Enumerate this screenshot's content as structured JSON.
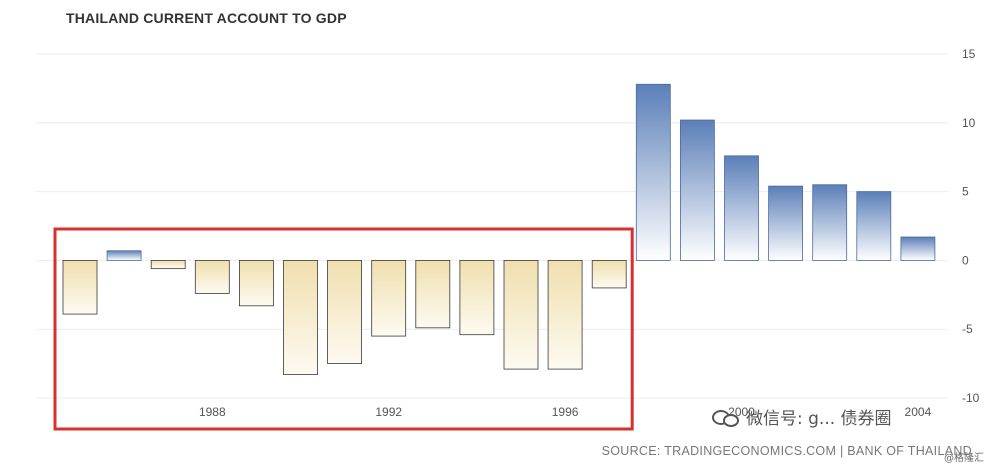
{
  "chart_data": {
    "type": "bar",
    "title": "THAILAND CURRENT ACCOUNT TO GDP",
    "x": [
      1985,
      1986,
      1987,
      1988,
      1989,
      1990,
      1991,
      1992,
      1993,
      1994,
      1995,
      1996,
      1997,
      1998,
      1999,
      2000,
      2001,
      2002,
      2003,
      2004
    ],
    "values": [
      -3.9,
      0.7,
      -0.6,
      -2.4,
      -3.3,
      -8.3,
      -7.5,
      -5.5,
      -4.9,
      -5.4,
      -7.9,
      -7.9,
      -2.0,
      12.8,
      10.2,
      7.6,
      5.4,
      5.5,
      5.0,
      1.7
    ],
    "x_tick_labels": [
      "1988",
      "1992",
      "1996",
      "2000",
      "2004"
    ],
    "x_ticks": [
      1988,
      1992,
      1996,
      2000,
      2004
    ],
    "y_tick_labels": [
      "15",
      "10",
      "5",
      "0",
      "-5",
      "-10"
    ],
    "y_ticks": [
      15,
      10,
      5,
      0,
      -5,
      -10
    ],
    "ylim": [
      -10,
      15
    ],
    "grid": true,
    "highlight_box": {
      "from": 1985,
      "to": 1997,
      "color": "#d9302f"
    },
    "colors": {
      "positive_top": "#5b7fb8",
      "positive_bottom": "#ffffff",
      "negative_top": "#f0dfae",
      "negative_bottom": "#fdfaf1",
      "positive_stroke": "#4a6aa0",
      "negative_stroke": "#3a3a3a",
      "grid": "#ececec"
    }
  },
  "source": "SOURCE: TRADINGECONOMICS.COM | BANK OF THAILAND",
  "watermark": {
    "text": "微信号: g... 债券圈",
    "weibo": "@格隆汇"
  }
}
